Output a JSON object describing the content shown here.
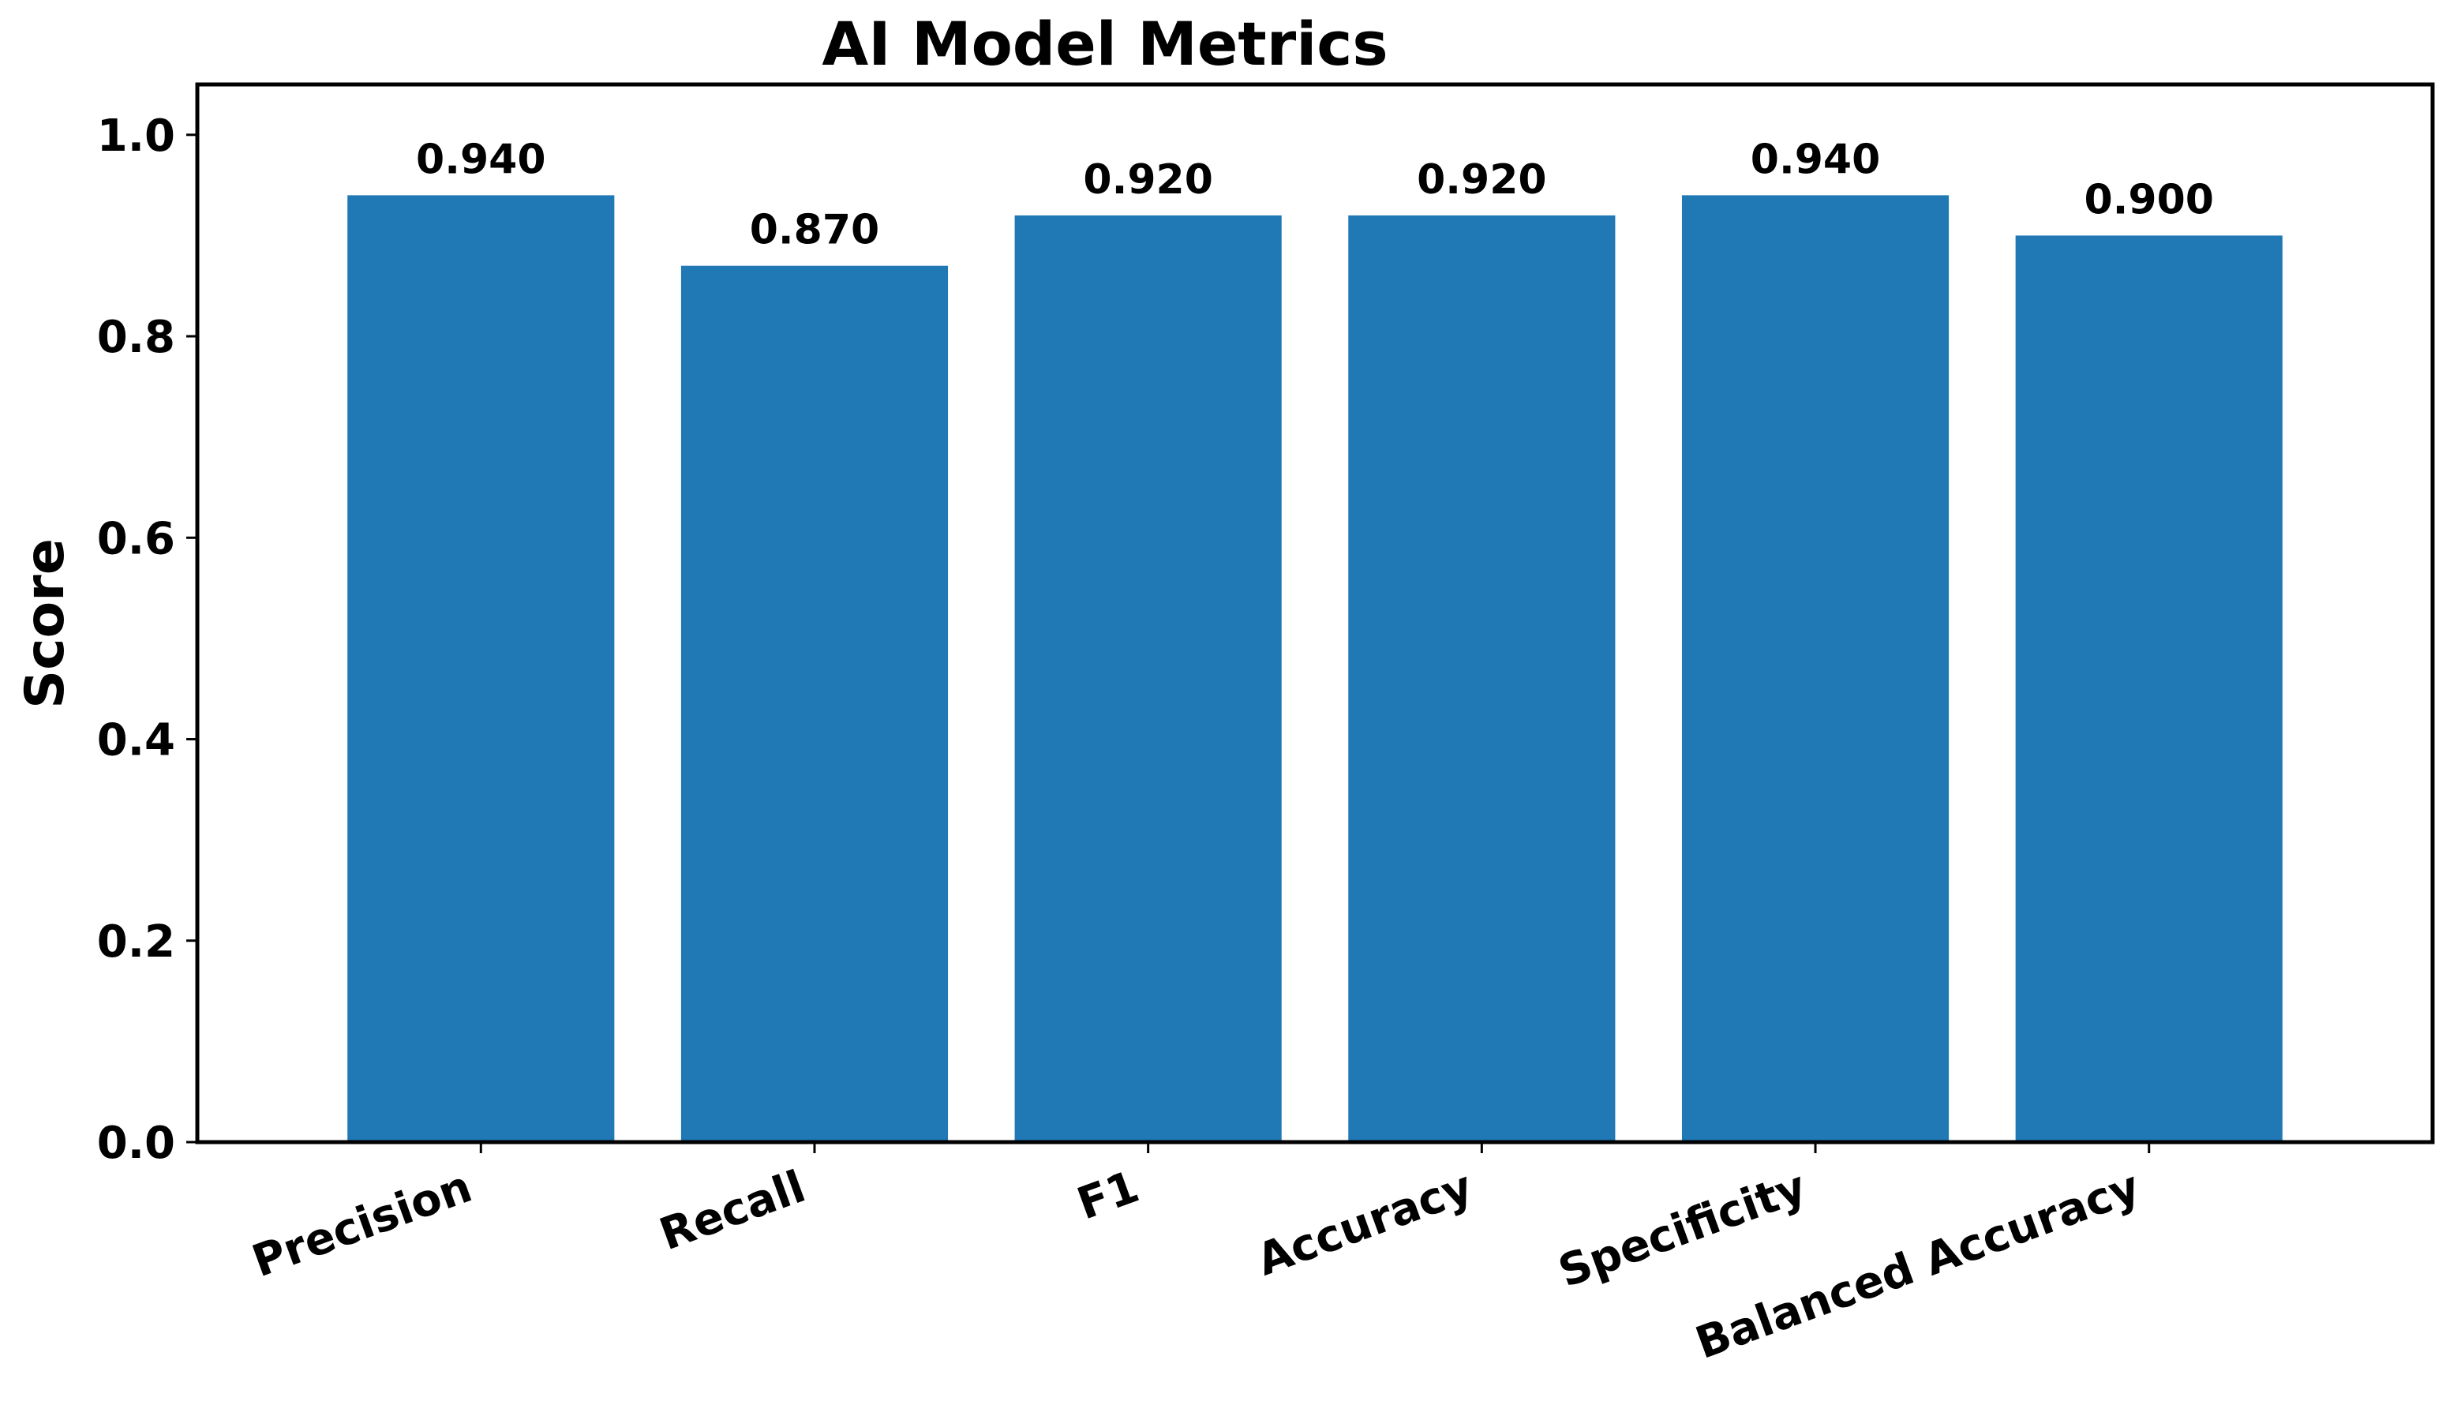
{
  "chart_data": {
    "type": "bar",
    "title": "AI Model Metrics",
    "xlabel": "",
    "ylabel": "Score",
    "categories": [
      "Precision",
      "Recall",
      "F1",
      "Accuracy",
      "Specificity",
      "Balanced Accuracy"
    ],
    "values": [
      0.94,
      0.87,
      0.92,
      0.92,
      0.94,
      0.9
    ],
    "value_labels": [
      "0.940",
      "0.870",
      "0.920",
      "0.920",
      "0.940",
      "0.900"
    ],
    "ylim": [
      0,
      1.05
    ],
    "yticks": [
      0.0,
      0.2,
      0.4,
      0.6,
      0.8,
      1.0
    ],
    "ytick_labels": [
      "0.0",
      "0.2",
      "0.4",
      "0.6",
      "0.8",
      "1.0"
    ],
    "grid": false,
    "bar_color": "#2078b4",
    "xtick_rotation": "20° counter-clockwise"
  }
}
